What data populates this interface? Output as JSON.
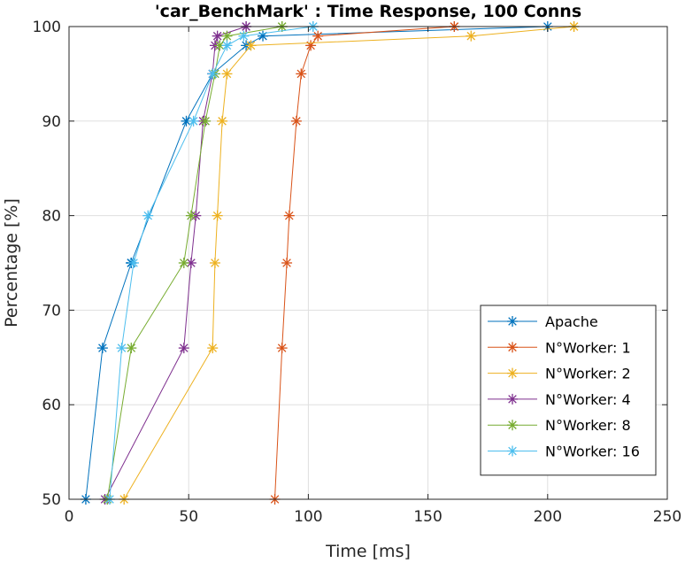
{
  "chart_data": {
    "type": "line",
    "title": "'car_BenchMark' : Time Response, 100 Conns",
    "xlabel": "Time [ms]",
    "ylabel": "Percentage [%]",
    "xlim": [
      0,
      250
    ],
    "ylim": [
      50,
      100
    ],
    "x_ticks": [
      0,
      50,
      100,
      150,
      200,
      250
    ],
    "y_ticks": [
      50,
      60,
      70,
      80,
      90,
      100
    ],
    "x_tick_labels": [
      "0",
      "50",
      "100",
      "150",
      "200",
      "250"
    ],
    "y_tick_labels": [
      "50",
      "60",
      "70",
      "80",
      "90",
      "100"
    ],
    "grid": true,
    "legend_position": "bottom-right",
    "marker": "asterisk",
    "series": [
      {
        "name": "Apache",
        "color": "#0072BD",
        "points": [
          [
            7,
            50
          ],
          [
            14,
            66
          ],
          [
            26,
            75
          ],
          [
            26,
            75
          ],
          [
            26,
            75
          ],
          [
            49,
            90
          ],
          [
            60,
            95
          ],
          [
            74,
            98
          ],
          [
            81,
            99
          ],
          [
            200,
            100
          ]
        ]
      },
      {
        "name": "N°Worker: 1",
        "color": "#D95319",
        "points": [
          [
            86,
            50
          ],
          [
            89,
            66
          ],
          [
            91,
            75
          ],
          [
            92,
            80
          ],
          [
            95,
            90
          ],
          [
            97,
            95
          ],
          [
            101,
            98
          ],
          [
            104,
            99
          ],
          [
            161,
            100
          ],
          [
            161,
            100
          ]
        ]
      },
      {
        "name": "N°Worker: 2",
        "color": "#EDB120",
        "points": [
          [
            23,
            50
          ],
          [
            60,
            66
          ],
          [
            61,
            75
          ],
          [
            62,
            80
          ],
          [
            64,
            90
          ],
          [
            66,
            95
          ],
          [
            76,
            98
          ],
          [
            168,
            99
          ],
          [
            211,
            100
          ],
          [
            211,
            100
          ]
        ]
      },
      {
        "name": "N°Worker: 4",
        "color": "#7E2F8E",
        "points": [
          [
            15,
            50
          ],
          [
            48,
            66
          ],
          [
            51,
            75
          ],
          [
            53,
            80
          ],
          [
            56,
            90
          ],
          [
            60,
            95
          ],
          [
            61,
            98
          ],
          [
            62,
            99
          ],
          [
            74,
            100
          ],
          [
            74,
            100
          ]
        ]
      },
      {
        "name": "N°Worker: 8",
        "color": "#77AC30",
        "points": [
          [
            16,
            50
          ],
          [
            26,
            66
          ],
          [
            48,
            75
          ],
          [
            51,
            80
          ],
          [
            57,
            90
          ],
          [
            61,
            95
          ],
          [
            63,
            98
          ],
          [
            66,
            99
          ],
          [
            89,
            100
          ],
          [
            89,
            100
          ]
        ]
      },
      {
        "name": "N°Worker: 16",
        "color": "#4DBEEE",
        "points": [
          [
            17,
            50
          ],
          [
            22,
            66
          ],
          [
            27,
            75
          ],
          [
            33,
            80
          ],
          [
            52,
            90
          ],
          [
            60,
            95
          ],
          [
            66,
            98
          ],
          [
            73,
            99
          ],
          [
            102,
            100
          ],
          [
            102,
            100
          ]
        ]
      }
    ]
  }
}
